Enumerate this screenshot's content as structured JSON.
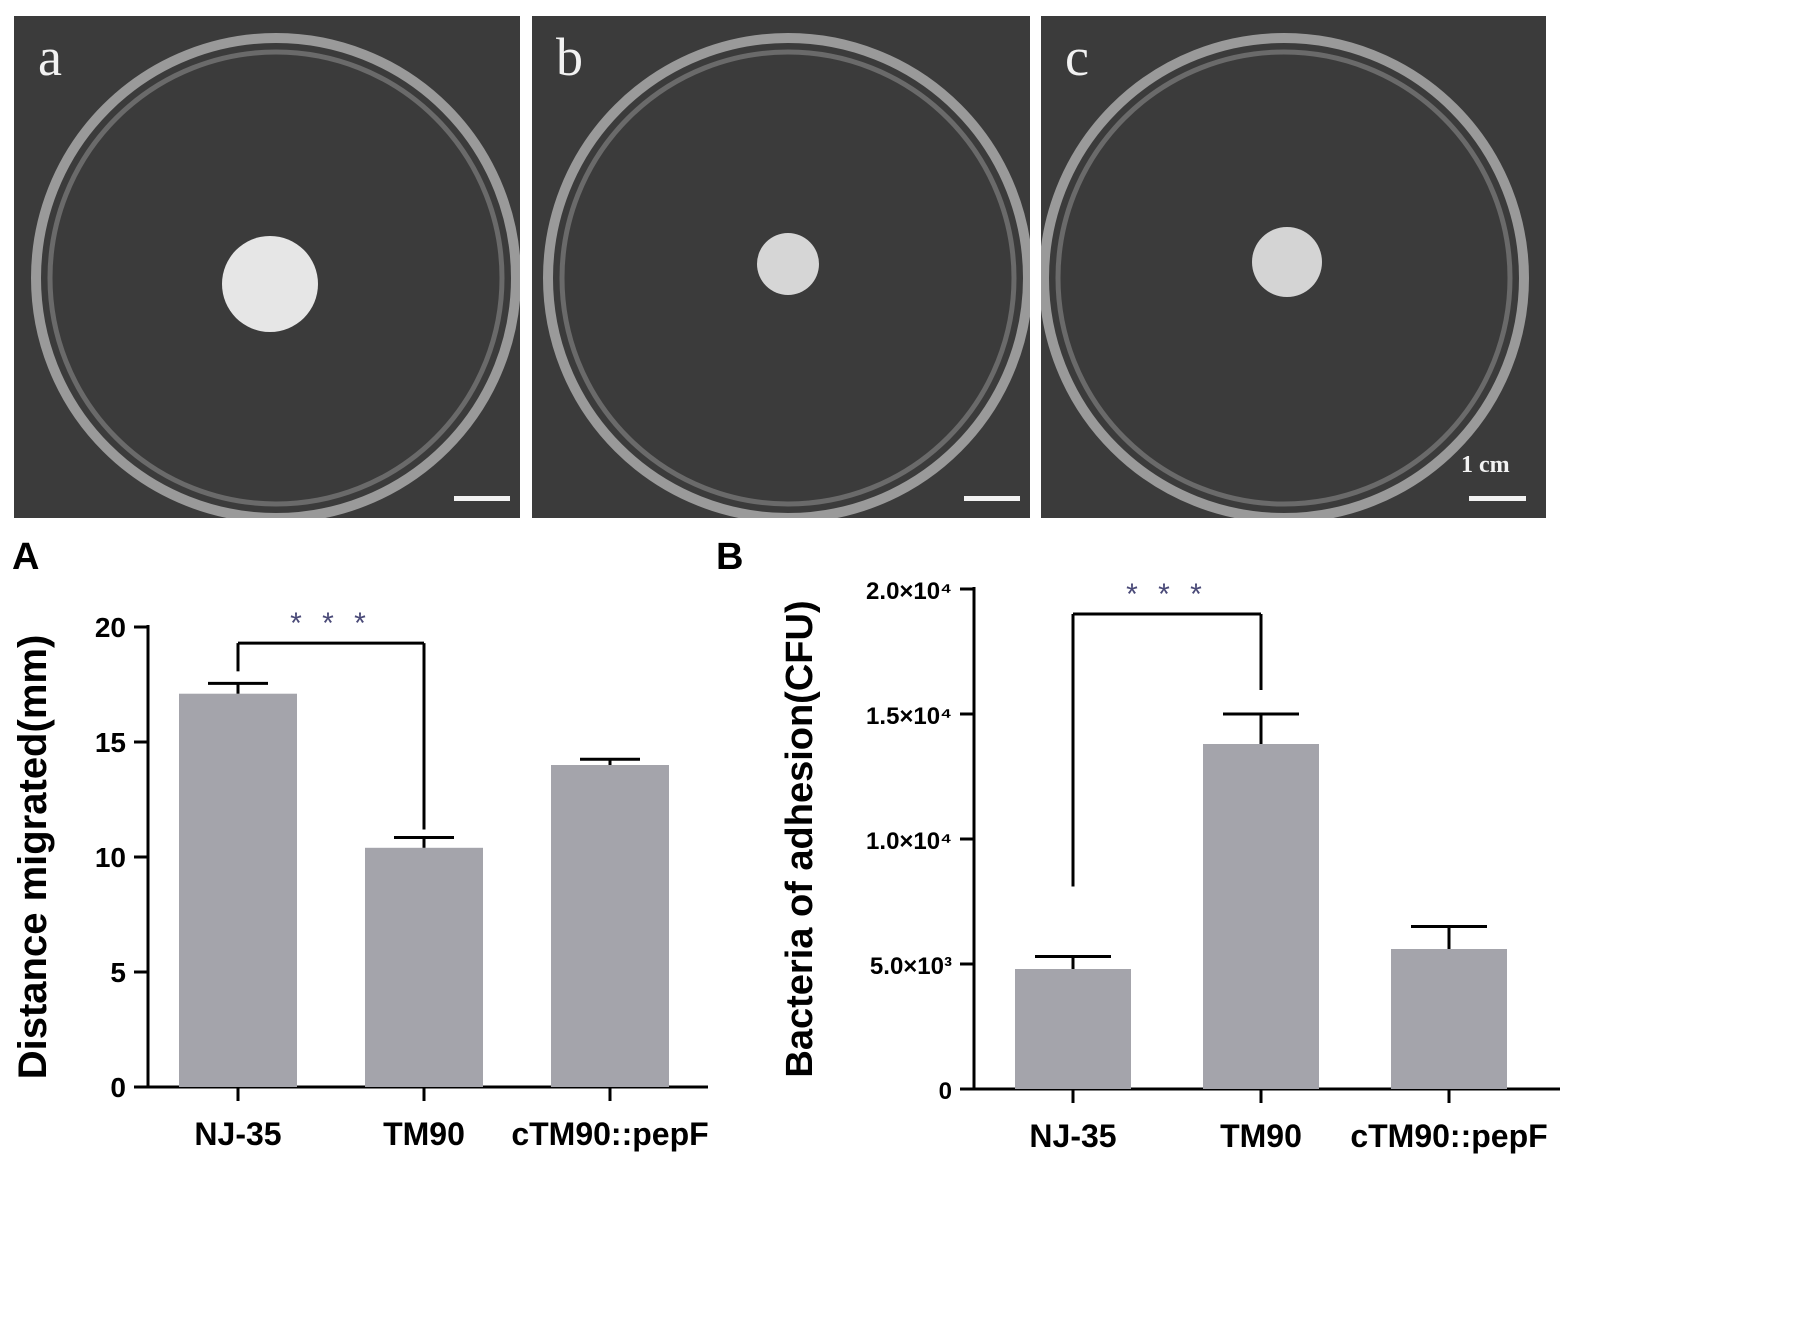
{
  "plates": [
    {
      "letter": "a",
      "colony": "large"
    },
    {
      "letter": "b",
      "colony": "small"
    },
    {
      "letter": "c",
      "colony": "medium"
    }
  ],
  "scale_bar_label": "1 cm",
  "chart_data": [
    {
      "type": "bar",
      "panel_label": "A",
      "categories": [
        "NJ-35",
        "TM90",
        "cTM90::pepF"
      ],
      "values": [
        17.1,
        10.4,
        14.0
      ],
      "error": [
        0.45,
        0.45,
        0.25
      ],
      "ylabel": "Distance migrated(mm)",
      "ylim": [
        0,
        20
      ],
      "yticks": [
        "0",
        "5",
        "10",
        "15",
        "20"
      ],
      "ytick_values": [
        0,
        5,
        10,
        15,
        20
      ],
      "significance": {
        "from": "NJ-35",
        "to": "TM90",
        "label": "* * *"
      },
      "bar_color": "#a4a4ab"
    },
    {
      "type": "bar",
      "panel_label": "B",
      "categories": [
        "NJ-35",
        "TM90",
        "cTM90::pepF"
      ],
      "values": [
        4800,
        13800,
        5600
      ],
      "error": [
        500,
        1200,
        900
      ],
      "ylabel": "Bacteria of adhesion(CFU)",
      "ylim": [
        0,
        20000
      ],
      "yticks": [
        "0",
        "5.0×10³",
        "1.0×10⁴",
        "1.5×10⁴",
        "2.0×10⁴"
      ],
      "ytick_values": [
        0,
        5000,
        10000,
        15000,
        20000
      ],
      "significance": {
        "from": "NJ-35",
        "to": "TM90",
        "label": "* * *"
      },
      "bar_color": "#a4a4ab"
    }
  ]
}
